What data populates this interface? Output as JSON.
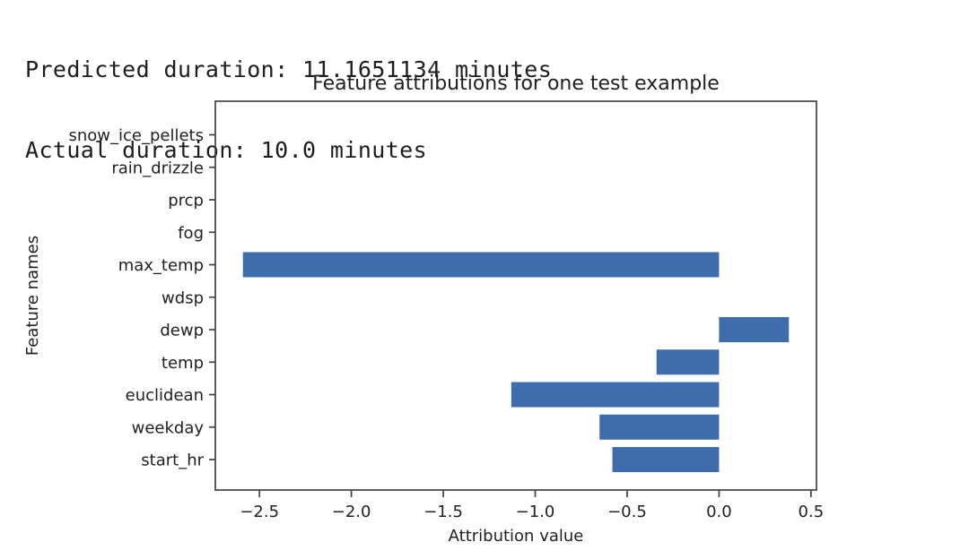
{
  "header": {
    "predicted_line": "Predicted duration: 11.1651134 minutes",
    "actual_line": "Actual duration: 10.0 minutes"
  },
  "chart_data": {
    "type": "bar",
    "orientation": "horizontal",
    "title": "Feature attributions for one test example",
    "xlabel": "Attribution value",
    "ylabel": "Feature names",
    "categories": [
      "snow_ice_pellets",
      "rain_drizzle",
      "prcp",
      "fog",
      "max_temp",
      "wdsp",
      "dewp",
      "temp",
      "euclidean",
      "weekday",
      "start_hr"
    ],
    "values": [
      0,
      0,
      0,
      0,
      -2.59,
      0,
      0.38,
      -0.34,
      -1.13,
      -0.65,
      -0.58
    ],
    "xticks": [
      -2.5,
      -2.0,
      -1.5,
      -1.0,
      -0.5,
      0.0,
      0.5
    ],
    "xlim": [
      -2.74,
      0.53
    ],
    "grid": false,
    "legend_position": "none",
    "bar_color": "#3e6cac",
    "axis_color": "#424242",
    "text_color": "#1f1f1f"
  }
}
